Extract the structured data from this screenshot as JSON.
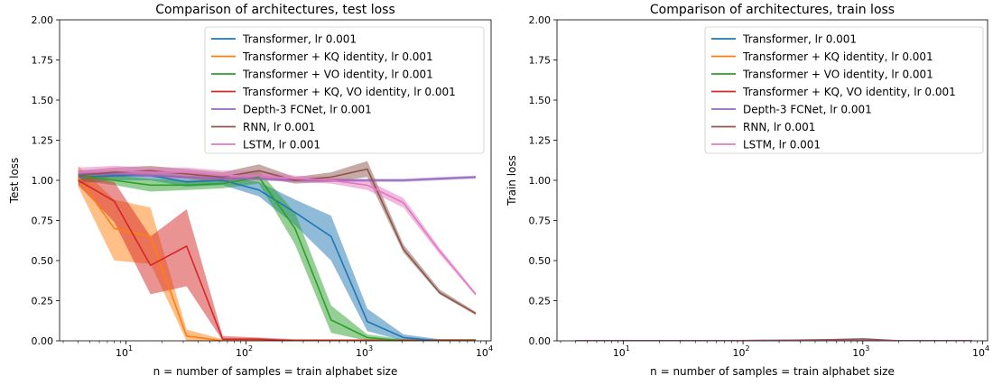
{
  "colors": {
    "transformer": "#1f77b4",
    "kq": "#ff7f0e",
    "vo": "#2ca02c",
    "kqvo": "#d62728",
    "fcnet": "#9467bd",
    "rnn": "#8c564b",
    "lstm": "#e377c2"
  },
  "chart_data": [
    {
      "type": "line",
      "title": "Comparison of architectures, test loss",
      "xlabel": "n = number of samples = train alphabet size",
      "ylabel": "Test loss",
      "xscale": "log",
      "xlim": [
        2.8,
        11000
      ],
      "ylim": [
        0,
        2.0
      ],
      "yticks": [
        "0.00",
        "0.25",
        "0.50",
        "0.75",
        "1.00",
        "1.25",
        "1.50",
        "1.75",
        "2.00"
      ],
      "xticks": [
        {
          "base": "10",
          "exp": "1"
        },
        {
          "base": "10",
          "exp": "2"
        },
        {
          "base": "10",
          "exp": "3"
        },
        {
          "base": "10",
          "exp": "4"
        }
      ],
      "legend_position": "top-right",
      "grid": false,
      "series": [
        {
          "key": "transformer",
          "name": "Transformer, lr 0.001",
          "x": [
            4,
            8,
            16,
            32,
            64,
            128,
            256,
            512,
            1024,
            2048,
            4096,
            8192
          ],
          "y": [
            1.02,
            1.03,
            1.03,
            0.99,
            1.0,
            0.94,
            0.8,
            0.65,
            0.12,
            0.02,
            0.0,
            0.0
          ],
          "lower": [
            0.98,
            1.0,
            1.0,
            0.96,
            0.97,
            0.9,
            0.72,
            0.5,
            0.06,
            0.0,
            0.0,
            0.0
          ],
          "upper": [
            1.06,
            1.06,
            1.06,
            1.03,
            1.03,
            0.99,
            0.88,
            0.78,
            0.2,
            0.04,
            0.01,
            0.01
          ]
        },
        {
          "key": "kq",
          "name": "Transformer + KQ identity, lr 0.001",
          "x": [
            4,
            8,
            16,
            32,
            64,
            128,
            256,
            512,
            1024,
            2048,
            4096,
            8192
          ],
          "y": [
            1.02,
            0.7,
            0.65,
            0.03,
            0.0,
            0.0,
            0.0,
            0.0,
            0.0,
            0.0,
            0.0,
            0.0
          ],
          "lower": [
            0.96,
            0.5,
            0.48,
            0.0,
            0.0,
            0.0,
            0.0,
            0.0,
            0.0,
            0.0,
            0.0,
            0.0
          ],
          "upper": [
            1.09,
            0.88,
            0.83,
            0.07,
            0.01,
            0.01,
            0.01,
            0.01,
            0.01,
            0.01,
            0.01,
            0.01
          ]
        },
        {
          "key": "vo",
          "name": "Transformer + VO identity, lr 0.001",
          "x": [
            4,
            8,
            16,
            32,
            64,
            128,
            256,
            512,
            1024,
            2048,
            4096,
            8192
          ],
          "y": [
            1.03,
            1.0,
            0.97,
            0.97,
            0.98,
            1.02,
            0.7,
            0.13,
            0.02,
            0.0,
            0.0,
            0.0
          ],
          "lower": [
            1.0,
            0.97,
            0.93,
            0.94,
            0.95,
            0.98,
            0.6,
            0.05,
            0.0,
            0.0,
            0.0,
            0.0
          ],
          "upper": [
            1.06,
            1.03,
            1.01,
            1.0,
            1.01,
            1.06,
            0.8,
            0.22,
            0.04,
            0.01,
            0.01,
            0.01
          ]
        },
        {
          "key": "kqvo",
          "name": "Transformer + KQ, VO identity, lr 0.001",
          "x": [
            4,
            8,
            16,
            32,
            64,
            128,
            256,
            512,
            1024,
            2048,
            4096,
            8192
          ],
          "y": [
            1.0,
            0.87,
            0.47,
            0.59,
            0.01,
            0.01,
            0.0,
            0.0,
            0.0,
            0.0,
            0.0,
            0.0
          ],
          "lower": [
            0.97,
            0.74,
            0.29,
            0.34,
            0.0,
            0.0,
            0.0,
            0.0,
            0.0,
            0.0,
            0.0,
            0.0
          ],
          "upper": [
            1.03,
            0.99,
            0.65,
            0.82,
            0.03,
            0.02,
            0.01,
            0.01,
            0.01,
            0.01,
            0.01,
            0.01
          ]
        },
        {
          "key": "fcnet",
          "name": "Depth-3 FCNet, lr 0.001",
          "x": [
            4,
            8,
            16,
            32,
            64,
            128,
            256,
            512,
            1024,
            2048,
            4096,
            8192
          ],
          "y": [
            1.04,
            1.04,
            1.03,
            1.02,
            1.01,
            1.01,
            1.0,
            1.0,
            1.0,
            1.0,
            1.01,
            1.02
          ],
          "lower": [
            1.03,
            1.03,
            1.02,
            1.01,
            1.0,
            1.0,
            0.99,
            0.99,
            0.99,
            0.99,
            1.0,
            1.01
          ],
          "upper": [
            1.05,
            1.05,
            1.04,
            1.03,
            1.02,
            1.02,
            1.01,
            1.01,
            1.01,
            1.01,
            1.02,
            1.03
          ]
        },
        {
          "key": "rnn",
          "name": "RNN, lr 0.001",
          "x": [
            4,
            8,
            16,
            32,
            64,
            128,
            256,
            512,
            1024,
            2048,
            4096,
            8192
          ],
          "y": [
            1.03,
            1.05,
            1.06,
            1.04,
            1.02,
            1.06,
            1.0,
            1.02,
            1.07,
            0.57,
            0.3,
            0.17
          ],
          "lower": [
            1.0,
            1.02,
            1.03,
            1.01,
            0.99,
            1.02,
            0.98,
            0.99,
            1.02,
            0.55,
            0.29,
            0.16
          ],
          "upper": [
            1.06,
            1.08,
            1.09,
            1.07,
            1.05,
            1.1,
            1.02,
            1.05,
            1.12,
            0.6,
            0.32,
            0.18
          ]
        },
        {
          "key": "lstm",
          "name": "LSTM, lr 0.001",
          "x": [
            4,
            8,
            16,
            32,
            64,
            128,
            256,
            512,
            1024,
            2048,
            4096,
            8192
          ],
          "y": [
            1.05,
            1.06,
            1.05,
            1.05,
            1.03,
            1.03,
            1.01,
            1.0,
            0.97,
            0.86,
            0.56,
            0.29
          ],
          "lower": [
            1.01,
            1.03,
            1.02,
            1.01,
            1.0,
            1.0,
            0.99,
            0.98,
            0.94,
            0.83,
            0.54,
            0.28
          ],
          "upper": [
            1.08,
            1.09,
            1.08,
            1.08,
            1.06,
            1.06,
            1.03,
            1.02,
            1.0,
            0.89,
            0.58,
            0.3
          ]
        }
      ]
    },
    {
      "type": "line",
      "title": "Comparison of architectures, train loss",
      "xlabel": "n = number of samples = train alphabet size",
      "ylabel": "Train loss",
      "xscale": "log",
      "xlim": [
        2.8,
        11000
      ],
      "ylim": [
        0,
        2.0
      ],
      "yticks": [
        "0.00",
        "0.25",
        "0.50",
        "0.75",
        "1.00",
        "1.25",
        "1.50",
        "1.75",
        "2.00"
      ],
      "xticks": [
        {
          "base": "10",
          "exp": "1"
        },
        {
          "base": "10",
          "exp": "2"
        },
        {
          "base": "10",
          "exp": "3"
        },
        {
          "base": "10",
          "exp": "4"
        }
      ],
      "legend_position": "top-right",
      "grid": false,
      "series": [
        {
          "key": "transformer",
          "name": "Transformer, lr 0.001",
          "x": [
            4,
            8,
            16,
            32,
            64,
            128,
            256,
            512,
            1024,
            2048,
            4096,
            8192
          ],
          "y": [
            0.0,
            0.0,
            0.0,
            0.0,
            0.0,
            0.0,
            0.0,
            0.0,
            0.0,
            0.0,
            0.0,
            0.0
          ]
        },
        {
          "key": "kq",
          "name": "Transformer + KQ identity, lr 0.001",
          "x": [
            4,
            8,
            16,
            32,
            64,
            128,
            256,
            512,
            1024,
            2048,
            4096,
            8192
          ],
          "y": [
            0.0,
            0.0,
            0.0,
            0.0,
            0.0,
            0.0,
            0.0,
            0.0,
            0.0,
            0.0,
            0.0,
            0.0
          ]
        },
        {
          "key": "vo",
          "name": "Transformer + VO identity, lr 0.001",
          "x": [
            4,
            8,
            16,
            32,
            64,
            128,
            256,
            512,
            1024,
            2048,
            4096,
            8192
          ],
          "y": [
            0.0,
            0.0,
            0.0,
            0.0,
            0.0,
            0.0,
            0.0,
            0.0,
            0.0,
            0.0,
            0.0,
            0.0
          ]
        },
        {
          "key": "kqvo",
          "name": "Transformer + KQ, VO identity, lr 0.001",
          "x": [
            4,
            8,
            16,
            32,
            64,
            128,
            256,
            512,
            1024,
            2048,
            4096,
            8192
          ],
          "y": [
            0.0,
            0.0,
            0.0,
            0.0,
            0.0,
            0.0,
            0.0,
            0.0,
            0.0,
            0.0,
            0.0,
            0.0
          ]
        },
        {
          "key": "fcnet",
          "name": "Depth-3 FCNet, lr 0.001",
          "x": [
            4,
            8,
            16,
            32,
            64,
            128,
            256,
            512,
            1024,
            2048,
            4096,
            8192
          ],
          "y": [
            0.0,
            0.0,
            0.0,
            0.0,
            0.0,
            0.0,
            0.0,
            0.0,
            0.0,
            0.0,
            0.0,
            0.0
          ]
        },
        {
          "key": "rnn",
          "name": "RNN, lr 0.001",
          "x": [
            4,
            8,
            16,
            32,
            64,
            128,
            256,
            512,
            1024,
            2048,
            4096,
            8192
          ],
          "y": [
            0.0,
            0.0,
            0.0,
            0.0,
            0.0,
            0.002,
            0.004,
            0.007,
            0.012,
            0.0,
            0.0,
            0.0
          ]
        },
        {
          "key": "lstm",
          "name": "LSTM, lr 0.001",
          "x": [
            4,
            8,
            16,
            32,
            64,
            128,
            256,
            512,
            1024,
            2048,
            4096,
            8192
          ],
          "y": [
            0.0,
            0.0,
            0.0,
            0.0,
            0.0,
            0.0,
            0.0,
            0.0,
            0.0,
            0.0,
            0.0,
            0.0
          ]
        }
      ]
    }
  ]
}
